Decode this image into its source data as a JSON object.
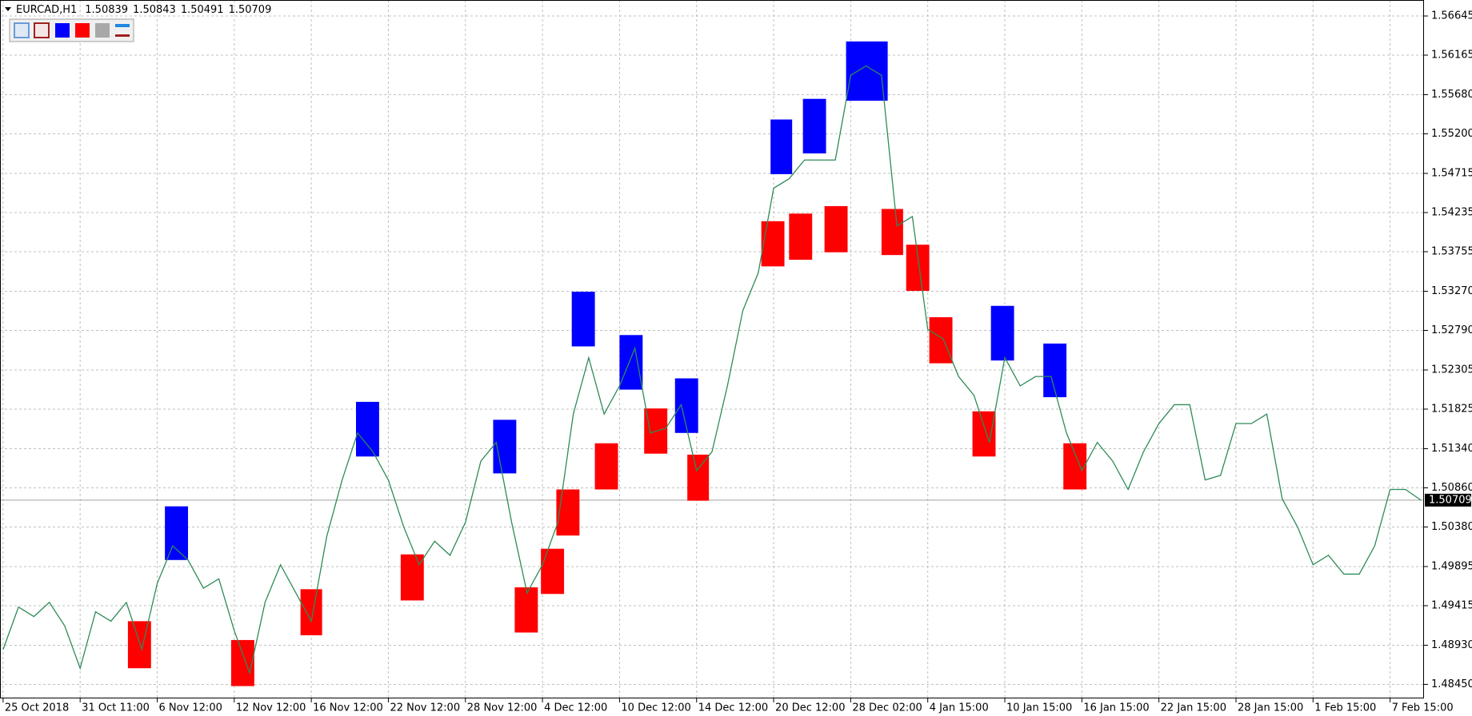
{
  "chart_data": {
    "type": "line",
    "symbol": "EURCAD,H1",
    "quote": [
      1.50839,
      1.50843,
      1.50491,
      1.50709
    ],
    "current_price": 1.50709,
    "x": [
      0,
      10,
      20,
      30,
      40,
      50,
      60,
      70,
      80,
      90,
      100,
      110,
      120,
      130,
      140,
      150,
      160,
      170,
      180,
      190,
      200,
      210,
      220,
      230,
      240,
      250,
      260,
      270,
      280,
      290,
      300,
      310,
      320,
      330,
      340,
      350,
      360,
      370,
      380,
      390,
      400,
      410,
      420,
      430,
      440,
      450,
      460,
      470,
      480,
      490,
      500,
      510,
      520,
      530,
      540,
      550,
      560,
      570,
      580,
      590,
      600,
      610,
      620,
      630,
      640,
      650,
      660,
      670,
      680,
      690,
      700,
      710,
      720,
      730,
      740,
      750,
      760,
      770,
      780,
      790,
      800,
      810,
      820,
      830,
      840,
      850,
      860,
      870,
      880,
      890,
      900,
      910,
      920
    ],
    "series": [
      {
        "color": "#2e8b57",
        "values": [
          1.48878,
          1.49398,
          1.49282,
          1.49456,
          1.49167,
          1.48648,
          1.4934,
          1.49225,
          1.49456,
          1.48878,
          1.49686,
          1.50148,
          1.49975,
          1.49629,
          1.49744,
          1.49109,
          1.4859,
          1.49456,
          1.49917,
          1.49571,
          1.49225,
          1.50263,
          1.50956,
          1.51533,
          1.51302,
          1.50956,
          1.50379,
          1.49917,
          1.50206,
          1.50033,
          1.50436,
          1.51187,
          1.51417,
          1.50436,
          1.49571,
          1.49917,
          1.50436,
          1.51764,
          1.52456,
          1.51764,
          1.5211,
          1.52571,
          1.51533,
          1.5159,
          1.51879,
          1.51071,
          1.51302,
          1.5211,
          1.53033,
          1.53495,
          1.54533,
          1.54649,
          1.54879,
          1.54879,
          1.54879,
          1.55918,
          1.56033,
          1.55918,
          1.54072,
          1.54187,
          1.52802,
          1.52687,
          1.52225,
          1.51994,
          1.51417,
          1.52456,
          1.5211,
          1.52225,
          1.52225,
          1.51533,
          1.51071,
          1.51417,
          1.51187,
          1.5084,
          1.51302,
          1.51648,
          1.51879,
          1.51879,
          1.50956,
          1.51013,
          1.51648,
          1.51648,
          1.51764,
          1.50725,
          1.50379,
          1.49917,
          1.50033,
          1.49802,
          1.49802,
          1.50148,
          1.5084,
          1.5084,
          1.50709
        ]
      }
    ],
    "boxes": [
      {
        "x": [
          105,
          120
        ],
        "high": 1.50633,
        "low": 1.49975,
        "color": "#0000ff"
      },
      {
        "x": [
          229,
          244
        ],
        "high": 1.51914,
        "low": 1.51244,
        "color": "#0000ff"
      },
      {
        "x": [
          318,
          333
        ],
        "high": 1.51694,
        "low": 1.51037,
        "color": "#0000ff"
      },
      {
        "x": [
          369,
          384
        ],
        "high": 1.53264,
        "low": 1.52594,
        "color": "#0000ff"
      },
      {
        "x": [
          400,
          415
        ],
        "high": 1.52733,
        "low": 1.52064,
        "color": "#0000ff"
      },
      {
        "x": [
          436,
          451
        ],
        "high": 1.52202,
        "low": 1.51533,
        "color": "#0000ff"
      },
      {
        "x": [
          498,
          512
        ],
        "high": 1.55376,
        "low": 1.54706,
        "color": "#0000ff"
      },
      {
        "x": [
          519,
          534
        ],
        "high": 1.55629,
        "low": 1.5496,
        "color": "#0000ff"
      },
      {
        "x": [
          547,
          574
        ],
        "high": 1.56333,
        "low": 1.55606,
        "color": "#0000ff"
      },
      {
        "x": [
          641,
          656
        ],
        "high": 1.53091,
        "low": 1.52421,
        "color": "#0000ff"
      },
      {
        "x": [
          675,
          690
        ],
        "high": 1.52629,
        "low": 1.51971,
        "color": "#0000ff"
      },
      {
        "x": [
          81,
          96
        ],
        "high": 1.49225,
        "low": 1.48648,
        "color": "#ff0000"
      },
      {
        "x": [
          148,
          163
        ],
        "high": 1.48994,
        "low": 1.48429,
        "color": "#ff0000"
      },
      {
        "x": [
          193,
          207
        ],
        "high": 1.49617,
        "low": 1.49052,
        "color": "#ff0000"
      },
      {
        "x": [
          258,
          273
        ],
        "high": 1.50044,
        "low": 1.49479,
        "color": "#ff0000"
      },
      {
        "x": [
          332,
          347
        ],
        "high": 1.4964,
        "low": 1.49086,
        "color": "#ff0000"
      },
      {
        "x": [
          349,
          364
        ],
        "high": 1.50113,
        "low": 1.49559,
        "color": "#ff0000"
      },
      {
        "x": [
          359,
          374
        ],
        "high": 1.5084,
        "low": 1.50275,
        "color": "#ff0000"
      },
      {
        "x": [
          384,
          399
        ],
        "high": 1.51406,
        "low": 1.5084,
        "color": "#ff0000"
      },
      {
        "x": [
          416,
          431
        ],
        "high": 1.51833,
        "low": 1.51279,
        "color": "#ff0000"
      },
      {
        "x": [
          444,
          458
        ],
        "high": 1.51267,
        "low": 1.50702,
        "color": "#ff0000"
      },
      {
        "x": [
          492,
          507
        ],
        "high": 1.54129,
        "low": 1.53575,
        "color": "#ff0000"
      },
      {
        "x": [
          510,
          525
        ],
        "high": 1.54222,
        "low": 1.53656,
        "color": "#ff0000"
      },
      {
        "x": [
          533,
          548
        ],
        "high": 1.54314,
        "low": 1.53748,
        "color": "#ff0000"
      },
      {
        "x": [
          570,
          584
        ],
        "high": 1.54279,
        "low": 1.53714,
        "color": "#ff0000"
      },
      {
        "x": [
          586,
          601
        ],
        "high": 1.53841,
        "low": 1.53275,
        "color": "#ff0000"
      },
      {
        "x": [
          601,
          616
        ],
        "high": 1.52952,
        "low": 1.52387,
        "color": "#ff0000"
      },
      {
        "x": [
          629,
          644
        ],
        "high": 1.51798,
        "low": 1.51244,
        "color": "#ff0000"
      },
      {
        "x": [
          688,
          703
        ],
        "high": 1.51406,
        "low": 1.5084,
        "color": "#ff0000"
      }
    ],
    "xlim": [
      -2,
      922
    ],
    "ylim": [
      1.48278,
      1.56841
    ],
    "xticks": [
      {
        "value": 0,
        "label": "25 Oct 2018"
      },
      {
        "value": 50,
        "label": "31 Oct 11:00"
      },
      {
        "value": 100,
        "label": "6 Nov 12:00"
      },
      {
        "value": 150,
        "label": "12 Nov 12:00"
      },
      {
        "value": 200,
        "label": "16 Nov 12:00"
      },
      {
        "value": 250,
        "label": "22 Nov 12:00"
      },
      {
        "value": 300,
        "label": "28 Nov 12:00"
      },
      {
        "value": 350,
        "label": "4 Dec 12:00"
      },
      {
        "value": 400,
        "label": "10 Dec 12:00"
      },
      {
        "value": 450,
        "label": "14 Dec 12:00"
      },
      {
        "value": 500,
        "label": "20 Dec 12:00"
      },
      {
        "value": 550,
        "label": "28 Dec 02:00"
      },
      {
        "value": 600,
        "label": "4 Jan 15:00"
      },
      {
        "value": 650,
        "label": "10 Jan 15:00"
      },
      {
        "value": 700,
        "label": "16 Jan 15:00"
      },
      {
        "value": 750,
        "label": "22 Jan 15:00"
      },
      {
        "value": 800,
        "label": "28 Jan 15:00"
      },
      {
        "value": 850,
        "label": "1 Feb 15:00"
      },
      {
        "value": 900,
        "label": "7 Feb 15:00"
      }
    ],
    "yticks": [
      1.56645,
      1.56165,
      {
        "value": 1.5568,
        "label": "1.55680"
      },
      {
        "value": 1.552,
        "label": "1.55200"
      },
      1.54715,
      1.54235,
      1.53755,
      {
        "value": 1.5327,
        "label": "1.53270"
      },
      {
        "value": 1.5279,
        "label": "1.52790"
      },
      1.52305,
      1.51825,
      {
        "value": 1.5134,
        "label": "1.51340"
      },
      {
        "value": 1.5086,
        "label": "1.50860"
      },
      {
        "value": 1.5038,
        "label": "1.50380"
      },
      1.49895,
      1.49415,
      {
        "value": 1.4893,
        "label": "1.48930"
      },
      {
        "value": 1.4845,
        "label": "1.48450"
      }
    ],
    "grid": true
  }
}
